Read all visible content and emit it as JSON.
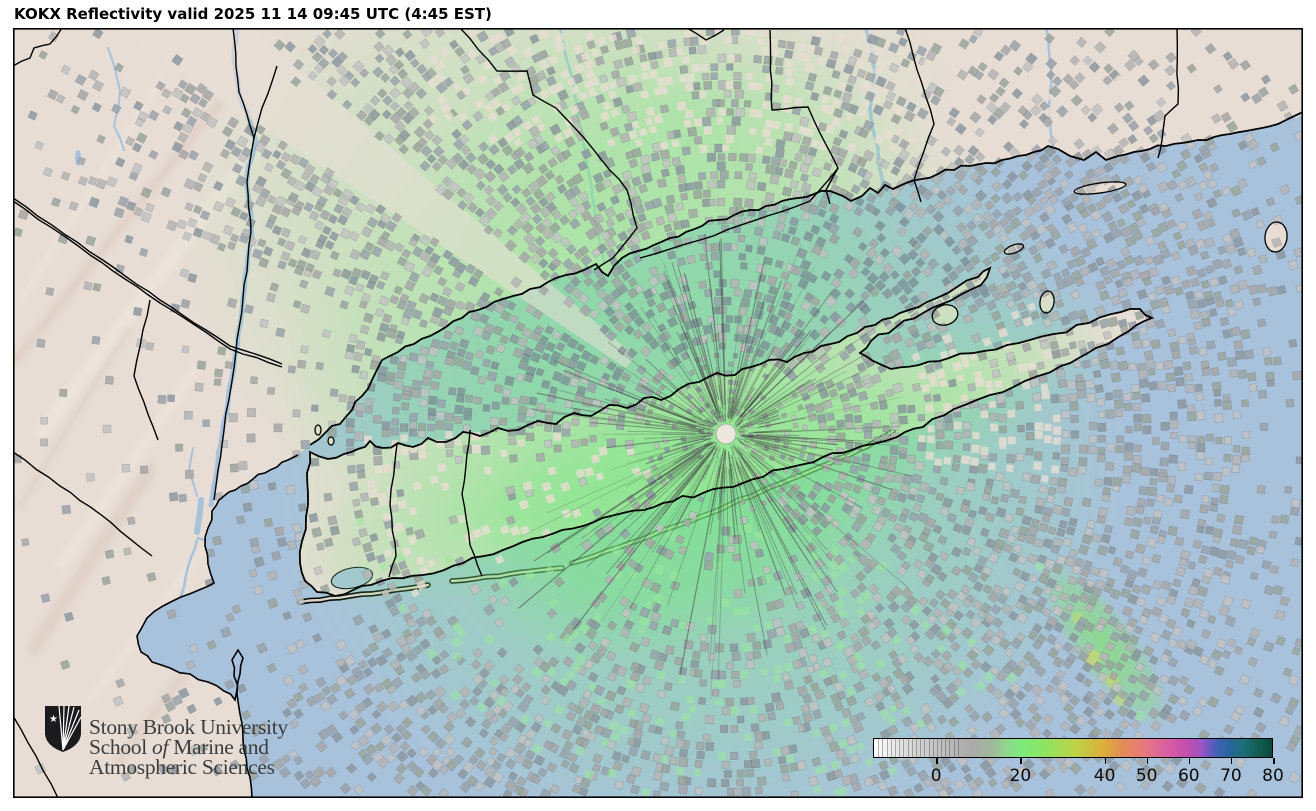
{
  "title": "KOKX Reflectivity valid 2025 11 14 09:45 UTC (4:45 EST)",
  "branding": {
    "line1": "Stony Brook University",
    "line2_pre": "School ",
    "line2_italic": "of",
    "line2_post": " Marine and",
    "line3": "Atmospheric Sciences"
  },
  "colorbar": {
    "min": -15,
    "max": 80,
    "ticks": [
      "0",
      "20",
      "40",
      "50",
      "60",
      "70",
      "80"
    ],
    "tick_values": [
      0,
      20,
      40,
      50,
      60,
      70,
      80
    ],
    "segment_lines": {
      "from": -14,
      "to": 5,
      "step": 1
    },
    "stops": [
      [
        -15,
        "#ffffff"
      ],
      [
        -8,
        "#dedede"
      ],
      [
        0,
        "#c3c3c3"
      ],
      [
        8,
        "#aaaaaa"
      ],
      [
        13,
        "#9fb89c"
      ],
      [
        17,
        "#8ed98a"
      ],
      [
        20,
        "#7dea7d"
      ],
      [
        26,
        "#8ee45f"
      ],
      [
        33,
        "#bdd348"
      ],
      [
        40,
        "#ddae3c"
      ],
      [
        44,
        "#e28f55"
      ],
      [
        48,
        "#e87f72"
      ],
      [
        52,
        "#e06f93"
      ],
      [
        56,
        "#d55aa5"
      ],
      [
        60,
        "#c14fae"
      ],
      [
        63,
        "#a055c2"
      ],
      [
        65,
        "#6e58c4"
      ],
      [
        67,
        "#3f62b2"
      ],
      [
        70,
        "#27659b"
      ],
      [
        73,
        "#1d6f79"
      ],
      [
        77,
        "#125c50"
      ],
      [
        80,
        "#0a4a3f"
      ]
    ]
  },
  "palette": {
    "page_bg": "#ffffff",
    "land": "#e7ddd5",
    "water": "#a9c2dc",
    "terrain_ridge": "#d9c8bb",
    "echo_green": "#7de884",
    "echo_green_bright": "#74e87e",
    "green_cell": "#9ae89b",
    "ocean_streak_yellow": "#d8d85c",
    "clutter_grays": [
      "#8d98a0",
      "#9aa3ab",
      "#a7a7a7",
      "#b5b5b5",
      "#c3c3c3",
      "#9aa59c"
    ],
    "sound_dark_cell": "#76828e",
    "pale_cell": "#e9ddd2",
    "border_line": "#000000",
    "spoke": "#474747",
    "radar_dot": "#ece6df",
    "logo_text": "#3c3c3c"
  }
}
